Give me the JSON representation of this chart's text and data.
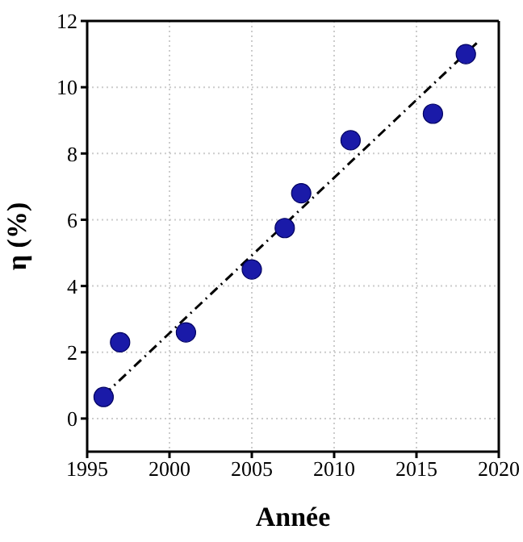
{
  "chart_data": {
    "type": "scatter",
    "xlabel": "Année",
    "ylabel": "η (%)",
    "x": [
      1996,
      1997,
      2001,
      2005,
      2007,
      2008,
      2011,
      2016,
      2018
    ],
    "series": [
      {
        "color": "#1a1aa8",
        "values": [
          0.65,
          2.3,
          2.6,
          4.5,
          5.75,
          6.8,
          8.4,
          9.2,
          11.0
        ],
        "marker": "circle"
      },
      {
        "type": "line",
        "color": "#000000",
        "x": [
          1996,
          2018.8
        ],
        "values": [
          0.7,
          11.4
        ],
        "line_style": "dashed",
        "marker": "none"
      }
    ],
    "xlim": [
      1995,
      2020
    ],
    "xticks": [
      1995,
      2000,
      2005,
      2010,
      2015,
      2020
    ],
    "ylim": [
      -1,
      12
    ],
    "yticks": [
      0,
      2,
      4,
      6,
      8,
      10,
      12
    ],
    "grid": true
  }
}
